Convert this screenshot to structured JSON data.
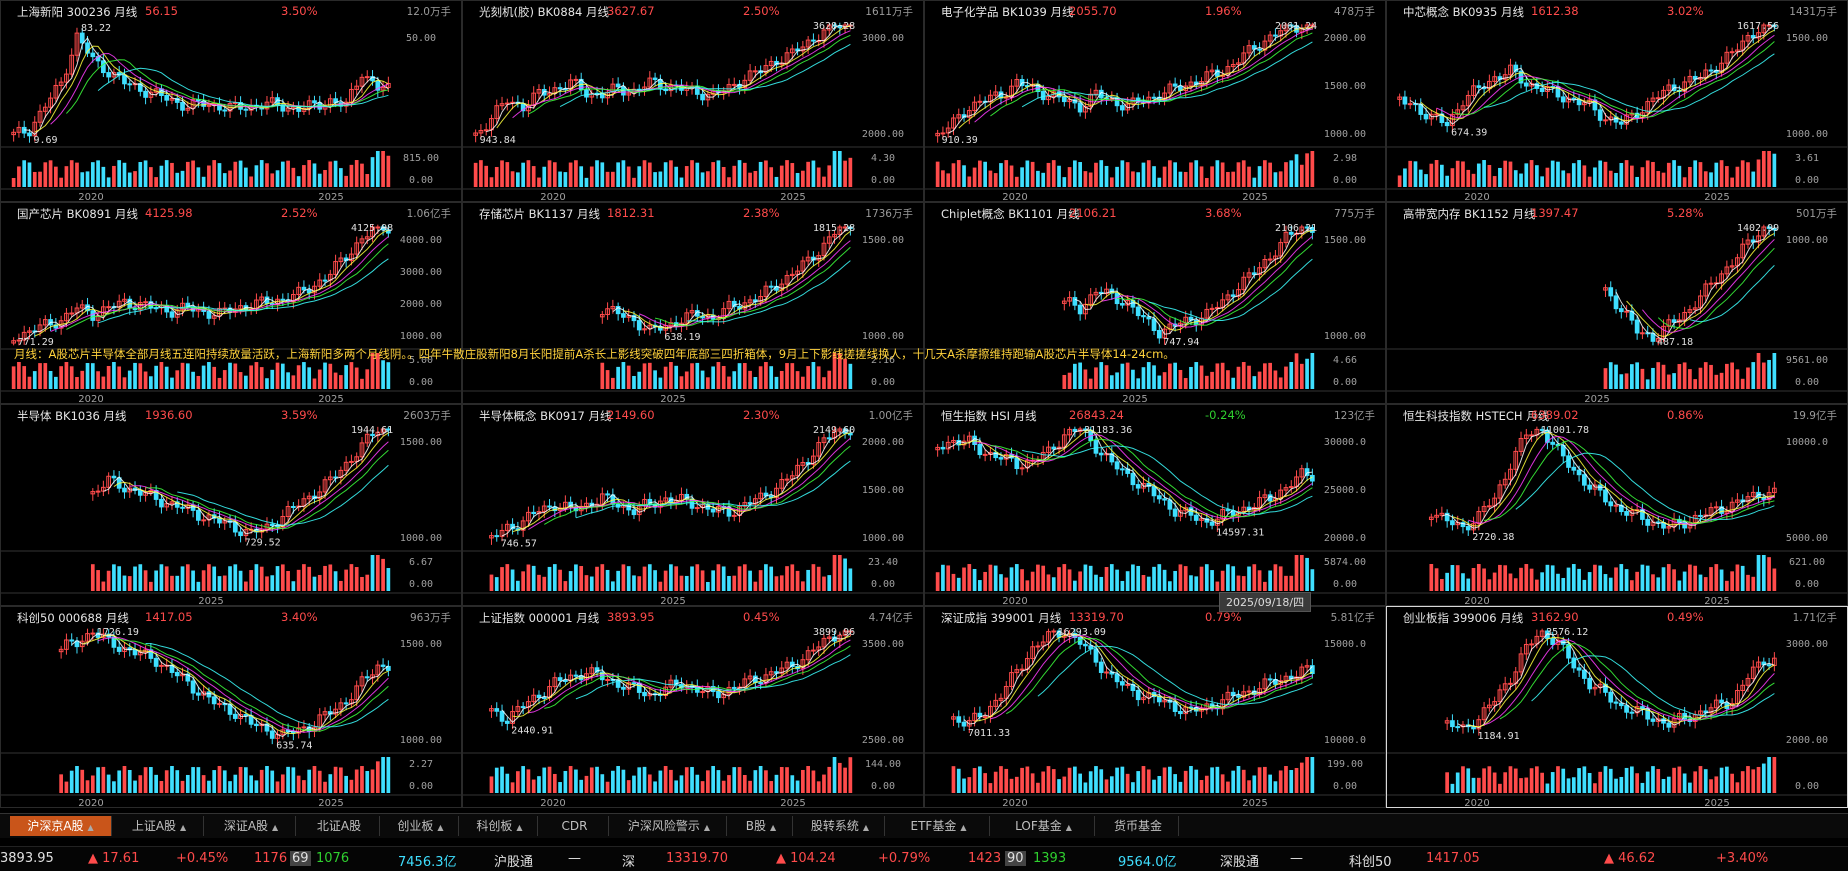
{
  "panels": [
    {
      "name": "上海新阳",
      "code": "300236",
      "period": "月线",
      "price": "56.15",
      "pct": "3.50%",
      "vol": "12.0万手",
      "up": true,
      "ylabels": [
        "50.00"
      ],
      "vlabels": [
        "815.00",
        "0.00"
      ],
      "years": [
        "2020",
        "2025"
      ],
      "hi": "83.22",
      "lo": "9.69"
    },
    {
      "name": "光刻机(胶)",
      "code": "BK0884",
      "period": "月线",
      "price": "3627.67",
      "pct": "2.50%",
      "vol": "1611万手",
      "up": true,
      "ylabels": [
        "3000.00",
        "2000.00"
      ],
      "vlabels": [
        "4.30",
        "0.00"
      ],
      "years": [
        "2020",
        "2025"
      ],
      "hi": "3628.28",
      "lo": "943.84"
    },
    {
      "name": "电子化学品",
      "code": "BK1039",
      "period": "月线",
      "price": "2055.70",
      "pct": "1.96%",
      "vol": "478万手",
      "up": true,
      "ylabels": [
        "2000.00",
        "1500.00",
        "1000.00"
      ],
      "vlabels": [
        "2.98",
        "0.00"
      ],
      "years": [
        "2020",
        "2025"
      ],
      "hi": "2061.24",
      "lo": "910.39"
    },
    {
      "name": "中芯概念",
      "code": "BK0935",
      "period": "月线",
      "price": "1612.38",
      "pct": "3.02%",
      "vol": "1431万手",
      "up": true,
      "ylabels": [
        "1500.00",
        "1000.00"
      ],
      "vlabels": [
        "3.61",
        "0.00"
      ],
      "years": [
        "2020",
        "2025"
      ],
      "hi": "1617.56",
      "lo": "674.39"
    },
    {
      "name": "国产芯片",
      "code": "BK0891",
      "period": "月线",
      "price": "4125.98",
      "pct": "2.52%",
      "vol": "1.06亿手",
      "up": true,
      "ylabels": [
        "4000.00",
        "3000.00",
        "2000.00",
        "1000.00"
      ],
      "vlabels": [
        "5.00",
        "0.00"
      ],
      "years": [
        "2020",
        "2025"
      ],
      "hi": "4125.98",
      "lo": "771.29"
    },
    {
      "name": "存储芯片",
      "code": "BK1137",
      "period": "月线",
      "price": "1812.31",
      "pct": "2.38%",
      "vol": "1736万手",
      "up": true,
      "ylabels": [
        "1500.00",
        "1000.00"
      ],
      "vlabels": [
        "2.16",
        "0.00"
      ],
      "years": [
        "2025"
      ],
      "hi": "1815.28",
      "lo": "638.19"
    },
    {
      "name": "Chiplet概念",
      "code": "BK1101",
      "period": "月线",
      "price": "2106.21",
      "pct": "3.68%",
      "vol": "775万手",
      "up": true,
      "ylabels": [
        "1500.00",
        "1000.00"
      ],
      "vlabels": [
        "4.66",
        "0.00"
      ],
      "years": [
        "2025"
      ],
      "hi": "2106.21",
      "lo": "747.94"
    },
    {
      "name": "高带宽内存",
      "code": "BK1152",
      "period": "月线",
      "price": "1397.47",
      "pct": "5.28%",
      "vol": "501万手",
      "up": true,
      "ylabels": [
        "1000.00"
      ],
      "vlabels": [
        "9561.00",
        "0.00"
      ],
      "years": [
        "2025"
      ],
      "hi": "1402.99",
      "lo": "487.18"
    },
    {
      "name": "半导体",
      "code": "BK1036",
      "period": "月线",
      "price": "1936.60",
      "pct": "3.59%",
      "vol": "2603万手",
      "up": true,
      "ylabels": [
        "1500.00",
        "1000.00"
      ],
      "vlabels": [
        "6.67",
        "0.00"
      ],
      "years": [
        "2025"
      ],
      "hi": "1944.61",
      "lo": "729.52"
    },
    {
      "name": "半导体概念",
      "code": "BK0917",
      "period": "月线",
      "price": "2149.60",
      "pct": "2.30%",
      "vol": "1.00亿手",
      "up": true,
      "ylabels": [
        "2000.00",
        "1500.00",
        "1000.00"
      ],
      "vlabels": [
        "23.40",
        "0.00"
      ],
      "years": [
        "2025"
      ],
      "hi": "2149.60",
      "lo": "746.57"
    },
    {
      "name": "恒生指数",
      "code": "HSI",
      "period": "月线",
      "price": "26843.24",
      "pct": "-0.24%",
      "vol": "123亿手",
      "up": false,
      "ylabels": [
        "30000.0",
        "25000.0",
        "20000.0"
      ],
      "vlabels": [
        "5874.00",
        "0.00"
      ],
      "years": [
        "2020",
        "2025"
      ],
      "hi": "31183.36",
      "lo": "14597.31"
    },
    {
      "name": "恒生科技指数",
      "code": "HSTECH",
      "period": "月线",
      "price": "6389.02",
      "pct": "0.86%",
      "vol": "19.9亿手",
      "up": true,
      "ylabels": [
        "10000.0",
        "5000.00"
      ],
      "vlabels": [
        "621.00",
        "0.00"
      ],
      "years": [
        "2020",
        "2025"
      ],
      "hi": "11001.78",
      "lo": "2720.38"
    },
    {
      "name": "科创50",
      "code": "000688",
      "period": "月线",
      "price": "1417.05",
      "pct": "3.40%",
      "vol": "963万手",
      "up": true,
      "ylabels": [
        "1500.00",
        "1000.00"
      ],
      "vlabels": [
        "2.27",
        "0.00"
      ],
      "years": [
        "2020",
        "2025"
      ],
      "hi": "1726.19",
      "lo": "635.74"
    },
    {
      "name": "上证指数",
      "code": "000001",
      "period": "月线",
      "price": "3893.95",
      "pct": "0.45%",
      "vol": "4.74亿手",
      "up": true,
      "ylabels": [
        "3500.00",
        "2500.00"
      ],
      "vlabels": [
        "144.00",
        "0.00"
      ],
      "years": [
        "2020",
        "2025"
      ],
      "hi": "3899.96",
      "lo": "2440.91"
    },
    {
      "name": "深证成指",
      "code": "399001",
      "period": "月线",
      "price": "13319.70",
      "pct": "0.79%",
      "vol": "5.81亿手",
      "up": true,
      "ylabels": [
        "15000.0",
        "10000.0"
      ],
      "vlabels": [
        "199.00",
        "0.00"
      ],
      "years": [
        "2020",
        "2025"
      ],
      "hi": "16293.09",
      "lo": "7011.33"
    },
    {
      "name": "创业板指",
      "code": "399006",
      "period": "月线",
      "price": "3162.90",
      "pct": "0.49%",
      "vol": "1.71亿手",
      "up": true,
      "ylabels": [
        "3000.00",
        "2000.00"
      ],
      "vlabels": [
        "0.00"
      ],
      "years": [
        "2020",
        "2025"
      ],
      "hi": "3576.12",
      "lo": "1184.91"
    }
  ],
  "annotation": "月线：A股芯片半导体全部月线五连阳持续放量活跃，上海新阳多两个月线阴。。四年牛散庄股新阳8月长阳提前A杀长上影线突破四年底部三四折箱体，9月上下影线搓搓线换人，十几天A杀摩擦维持跑输A股芯片半导体14-24cm。",
  "date_tooltip": "2025/09/18/四",
  "tabs": [
    {
      "label": "沪深京A股",
      "caret": true,
      "active": true
    },
    {
      "label": "上证A股",
      "caret": true
    },
    {
      "label": "深证A股",
      "caret": true
    },
    {
      "label": "北证A股",
      "caret": false
    },
    {
      "label": "创业板",
      "caret": true
    },
    {
      "label": "科创板",
      "caret": true
    },
    {
      "label": "CDR",
      "caret": false
    },
    {
      "label": "沪深风险警示",
      "caret": true
    },
    {
      "label": "B股",
      "caret": true
    },
    {
      "label": "股转系统",
      "caret": true
    },
    {
      "label": "ETF基金",
      "caret": true
    },
    {
      "label": "LOF基金",
      "caret": true
    },
    {
      "label": "货币基金",
      "caret": false
    }
  ],
  "ticker": {
    "sh_value": "3893.95",
    "sh_change": "▲ 17.61",
    "sh_pct": "+0.45%",
    "sh_up": "1176",
    "sh_flat": "69",
    "sh_down": "1076",
    "sh_amount": "7456.3亿",
    "hgt_label": "沪股通",
    "hgt_value": "—",
    "sz_label": "深",
    "sz_value": "13319.70",
    "sz_change": "▲ 104.24",
    "sz_pct": "+0.79%",
    "sz_up": "1423",
    "sz_flat": "90",
    "sz_down": "1393",
    "sz_amount": "9564.0亿",
    "sgt_label": "深股通",
    "sgt_value": "—",
    "kc_label": "科创50",
    "kc_value": "1417.05",
    "kc_change": "▲ 46.62",
    "kc_pct": "+3.40%"
  },
  "colors": {
    "up": "#ff4b4b",
    "down": "#2fd02f",
    "vol_up": "#ff4b4b",
    "vol_down": "#3fdfff",
    "ma5": "#ffffff",
    "ma10": "#ffff3c",
    "ma20": "#ff3cff",
    "ma30": "#3cff3c",
    "ma60": "#3cffff"
  }
}
